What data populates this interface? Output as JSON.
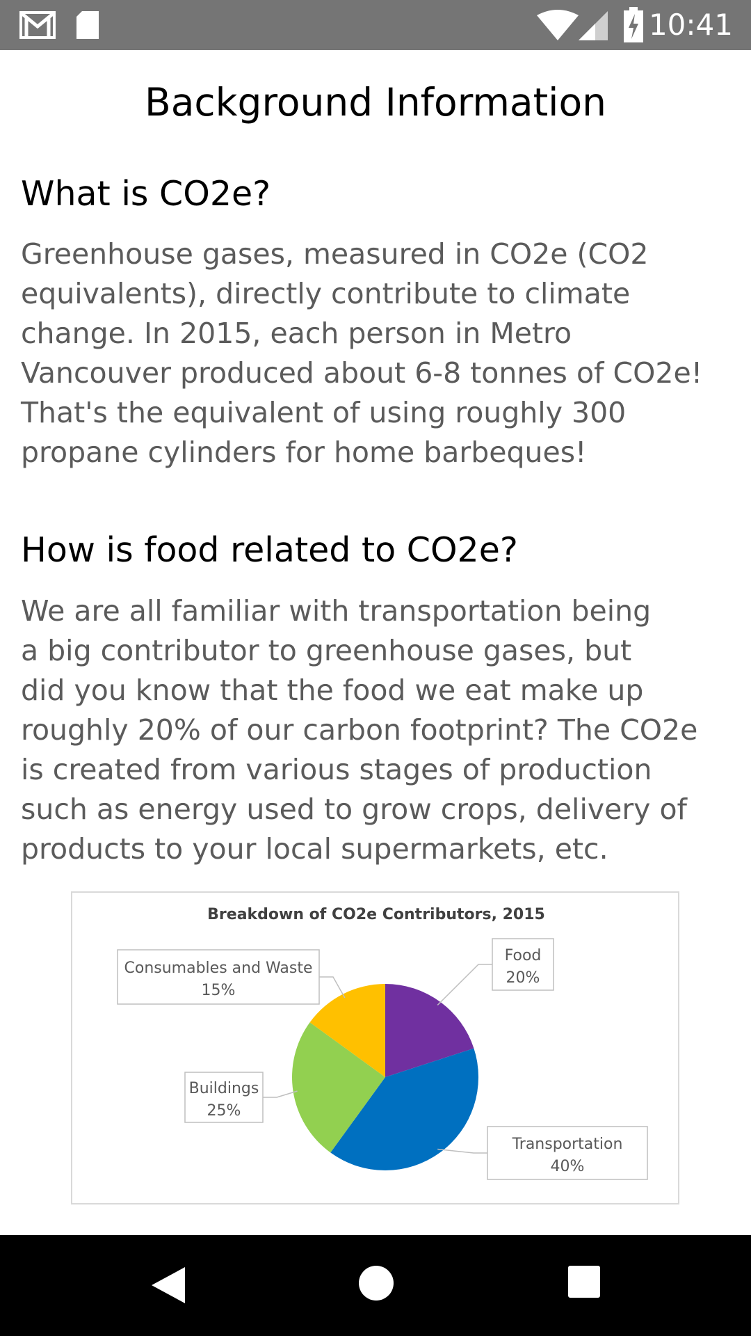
{
  "status_bar": {
    "time": "10:41",
    "left_icons": [
      "gmail-icon",
      "sd-card-icon"
    ],
    "right_icons": [
      "wifi-icon",
      "signal-icon",
      "battery-charging-icon"
    ]
  },
  "page": {
    "title": "Background Information"
  },
  "sections": [
    {
      "heading": "What is CO2e?",
      "body": "Greenhouse gases, measured in CO2e (CO2\nequivalents), directly contribute to climate\nchange. In 2015, each person in Metro\nVancouver produced about 6-8 tonnes of CO2e!\nThat's the equivalent of using roughly 300\npropane cylinders for home barbeques!"
    },
    {
      "heading": "How is food related to CO2e?",
      "body": "We are all familiar with transportation being\na big contributor to greenhouse gases, but\ndid you know that the food we eat make up\nroughly 20% of our carbon footprint? The CO2e\nis created from various stages of production\nsuch as energy used to grow crops, delivery of\nproducts to your local supermarkets, etc."
    }
  ],
  "chart_data": {
    "type": "pie",
    "title": "Breakdown of CO2e Contributors, 2015",
    "slices": [
      {
        "label": "Food",
        "value": 20,
        "display": "20%",
        "color": "#7030a0"
      },
      {
        "label": "Transportation",
        "value": 40,
        "display": "40%",
        "color": "#0070c0"
      },
      {
        "label": "Buildings",
        "value": 25,
        "display": "25%",
        "color": "#92d050"
      },
      {
        "label": "Consumables and Waste",
        "value": 15,
        "display": "15%",
        "color": "#ffc000"
      }
    ],
    "legend": "none"
  },
  "nav_bar": {
    "buttons": [
      "back-icon",
      "home-icon",
      "recents-icon"
    ]
  }
}
